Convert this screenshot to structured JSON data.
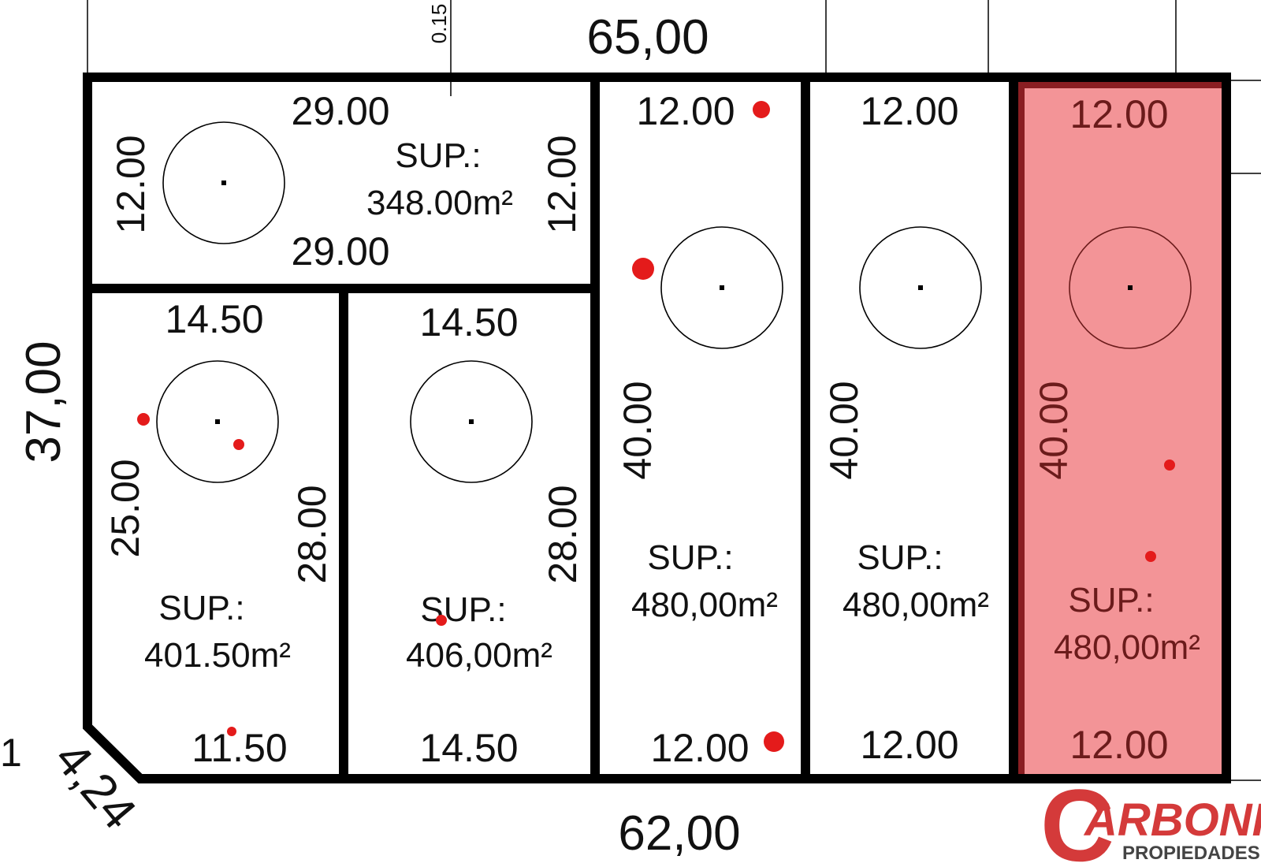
{
  "plan": {
    "top_total": "65,00",
    "bottom_total": "62,00",
    "left_total": "37,00",
    "chamfer": "4,24",
    "edge_mark": "0.15",
    "edge_one": "1",
    "sup_label": "SUP.:"
  },
  "lots": {
    "top_left": {
      "top": "29.00",
      "bottom": "29.00",
      "left": "12.00",
      "right": "12.00",
      "area": "348.00m²"
    },
    "bottom_left": {
      "top": "14.50",
      "bottom": "11.50",
      "left": "25.00",
      "right": "28.00",
      "area": "401.50m²"
    },
    "bottom_mid": {
      "top": "14.50",
      "bottom": "14.50",
      "right": "28.00",
      "area": "406,00m²"
    },
    "col_a": {
      "top": "12.00",
      "bottom": "12.00",
      "side": "40.00",
      "area": "480,00m²"
    },
    "col_b": {
      "top": "12.00",
      "bottom": "12.00",
      "side": "40.00",
      "area": "480,00m²"
    },
    "col_c": {
      "top": "12.00",
      "bottom": "12.00",
      "side": "40.00",
      "area": "480,00m²",
      "highlight_color": "#f39497"
    }
  },
  "logo": {
    "initial": "C",
    "name": "ARBONI",
    "tagline": "PROPIEDADES",
    "color": "#d43a3a"
  }
}
